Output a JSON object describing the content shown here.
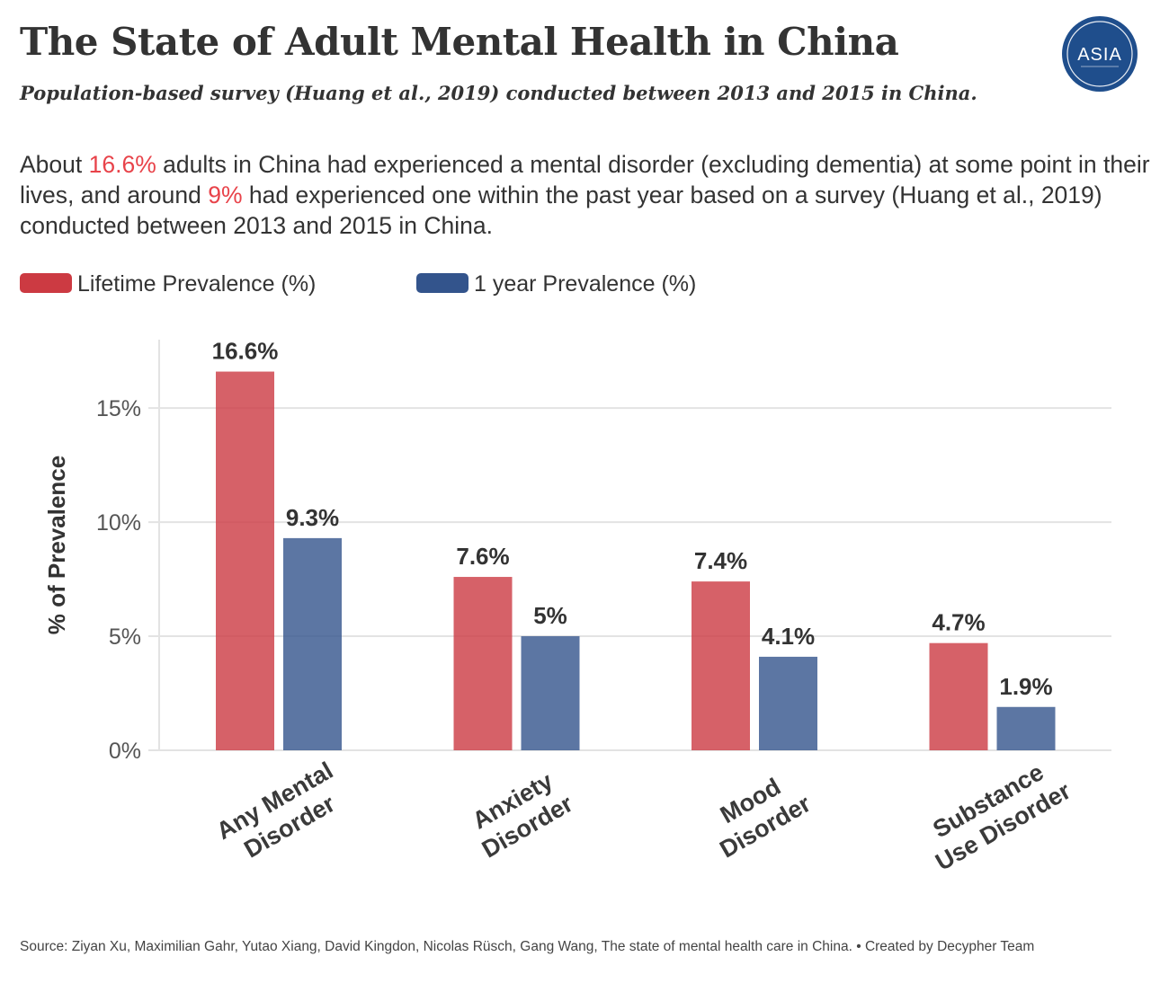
{
  "header": {
    "title": "The State of Adult Mental Health in China",
    "subtitle": "Population-based survey (Huang et al., 2019) conducted between 2013 and 2015 in China.",
    "logo_text": "ASIA",
    "logo_color": "#1f4e8c"
  },
  "description": {
    "part1": "About ",
    "highlight1": "16.6%",
    "part2": " adults in China had experienced a mental disorder (excluding dementia) at some point in their lives, and around ",
    "highlight2": "9%",
    "part3": " had experienced one within the past year based on a survey (Huang et al., 2019) conducted between 2013 and 2015 in China.",
    "highlight_color": "#e8434a"
  },
  "legend": [
    {
      "label": "Lifetime Prevalence (%)",
      "color": "#cc3a42"
    },
    {
      "label": "1 year Prevalence (%)",
      "color": "#33548c"
    }
  ],
  "chart_data": {
    "type": "bar",
    "categories": [
      [
        "Any Mental",
        "Disorder"
      ],
      [
        "Anxiety",
        "Disorder"
      ],
      [
        "Mood",
        "Disorder"
      ],
      [
        "Substance",
        "Use Disorder"
      ]
    ],
    "series": [
      {
        "name": "Lifetime Prevalence (%)",
        "color": "#cc3a42",
        "values": [
          16.6,
          7.6,
          7.4,
          4.7
        ],
        "labels": [
          "16.6%",
          "7.6%",
          "7.4%",
          "4.7%"
        ]
      },
      {
        "name": "1 year Prevalence (%)",
        "color": "#33548c",
        "values": [
          9.3,
          5,
          4.1,
          1.9
        ],
        "labels": [
          "9.3%",
          "5%",
          "4.1%",
          "1.9%"
        ]
      }
    ],
    "ylabel": "% of Prevalence",
    "ylim": [
      0,
      18
    ],
    "yticks": [
      0,
      5,
      10,
      15
    ],
    "ytick_labels": [
      "0%",
      "5%",
      "10%",
      "15%"
    ],
    "grid": true,
    "legend_position": "top-left"
  },
  "footer": {
    "source": "Source: Ziyan Xu, Maximilian Gahr, Yutao Xiang, David Kingdon, Nicolas Rüsch, Gang Wang, The state of mental health care in China. • Created by Decypher Team"
  }
}
